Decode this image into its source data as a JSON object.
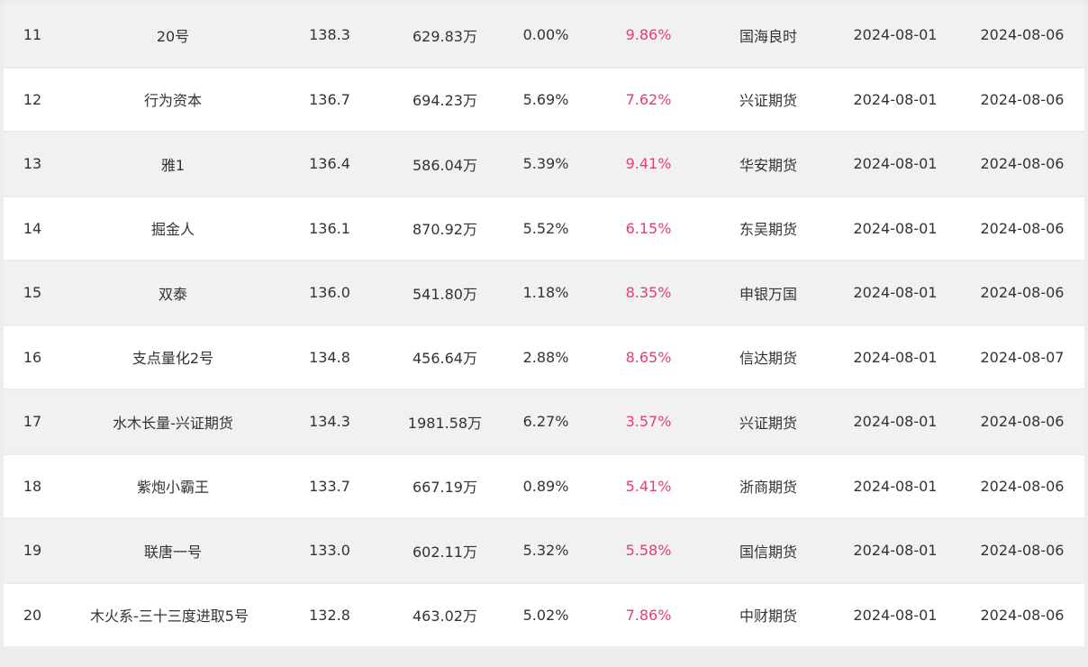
{
  "colors": {
    "return_color": "#e93a7b",
    "odd_row": "#f1f1f1",
    "even_row": "#ffffff"
  },
  "rows": [
    {
      "rank": "11",
      "name": "20号",
      "nav": "138.3",
      "scale": "629.83万",
      "drawdown": "0.00%",
      "ret": "9.86%",
      "broker": "国海良时",
      "start": "2024-08-01",
      "end": "2024-08-06"
    },
    {
      "rank": "12",
      "name": "行为资本",
      "nav": "136.7",
      "scale": "694.23万",
      "drawdown": "5.69%",
      "ret": "7.62%",
      "broker": "兴证期货",
      "start": "2024-08-01",
      "end": "2024-08-06"
    },
    {
      "rank": "13",
      "name": "雅1",
      "nav": "136.4",
      "scale": "586.04万",
      "drawdown": "5.39%",
      "ret": "9.41%",
      "broker": "华安期货",
      "start": "2024-08-01",
      "end": "2024-08-06"
    },
    {
      "rank": "14",
      "name": "掘金人",
      "nav": "136.1",
      "scale": "870.92万",
      "drawdown": "5.52%",
      "ret": "6.15%",
      "broker": "东吴期货",
      "start": "2024-08-01",
      "end": "2024-08-06"
    },
    {
      "rank": "15",
      "name": "双泰",
      "nav": "136.0",
      "scale": "541.80万",
      "drawdown": "1.18%",
      "ret": "8.35%",
      "broker": "申银万国",
      "start": "2024-08-01",
      "end": "2024-08-06"
    },
    {
      "rank": "16",
      "name": "支点量化2号",
      "nav": "134.8",
      "scale": "456.64万",
      "drawdown": "2.88%",
      "ret": "8.65%",
      "broker": "信达期货",
      "start": "2024-08-01",
      "end": "2024-08-07"
    },
    {
      "rank": "17",
      "name": "水木长量-兴证期货",
      "nav": "134.3",
      "scale": "1981.58万",
      "drawdown": "6.27%",
      "ret": "3.57%",
      "broker": "兴证期货",
      "start": "2024-08-01",
      "end": "2024-08-06"
    },
    {
      "rank": "18",
      "name": "紫炮小霸王",
      "nav": "133.7",
      "scale": "667.19万",
      "drawdown": "0.89%",
      "ret": "5.41%",
      "broker": "浙商期货",
      "start": "2024-08-01",
      "end": "2024-08-06"
    },
    {
      "rank": "19",
      "name": "联唐一号",
      "nav": "133.0",
      "scale": "602.11万",
      "drawdown": "5.32%",
      "ret": "5.58%",
      "broker": "国信期货",
      "start": "2024-08-01",
      "end": "2024-08-06"
    },
    {
      "rank": "20",
      "name": "木火系-三十三度进取5号",
      "nav": "132.8",
      "scale": "463.02万",
      "drawdown": "5.02%",
      "ret": "7.86%",
      "broker": "中财期货",
      "start": "2024-08-01",
      "end": "2024-08-06"
    }
  ]
}
